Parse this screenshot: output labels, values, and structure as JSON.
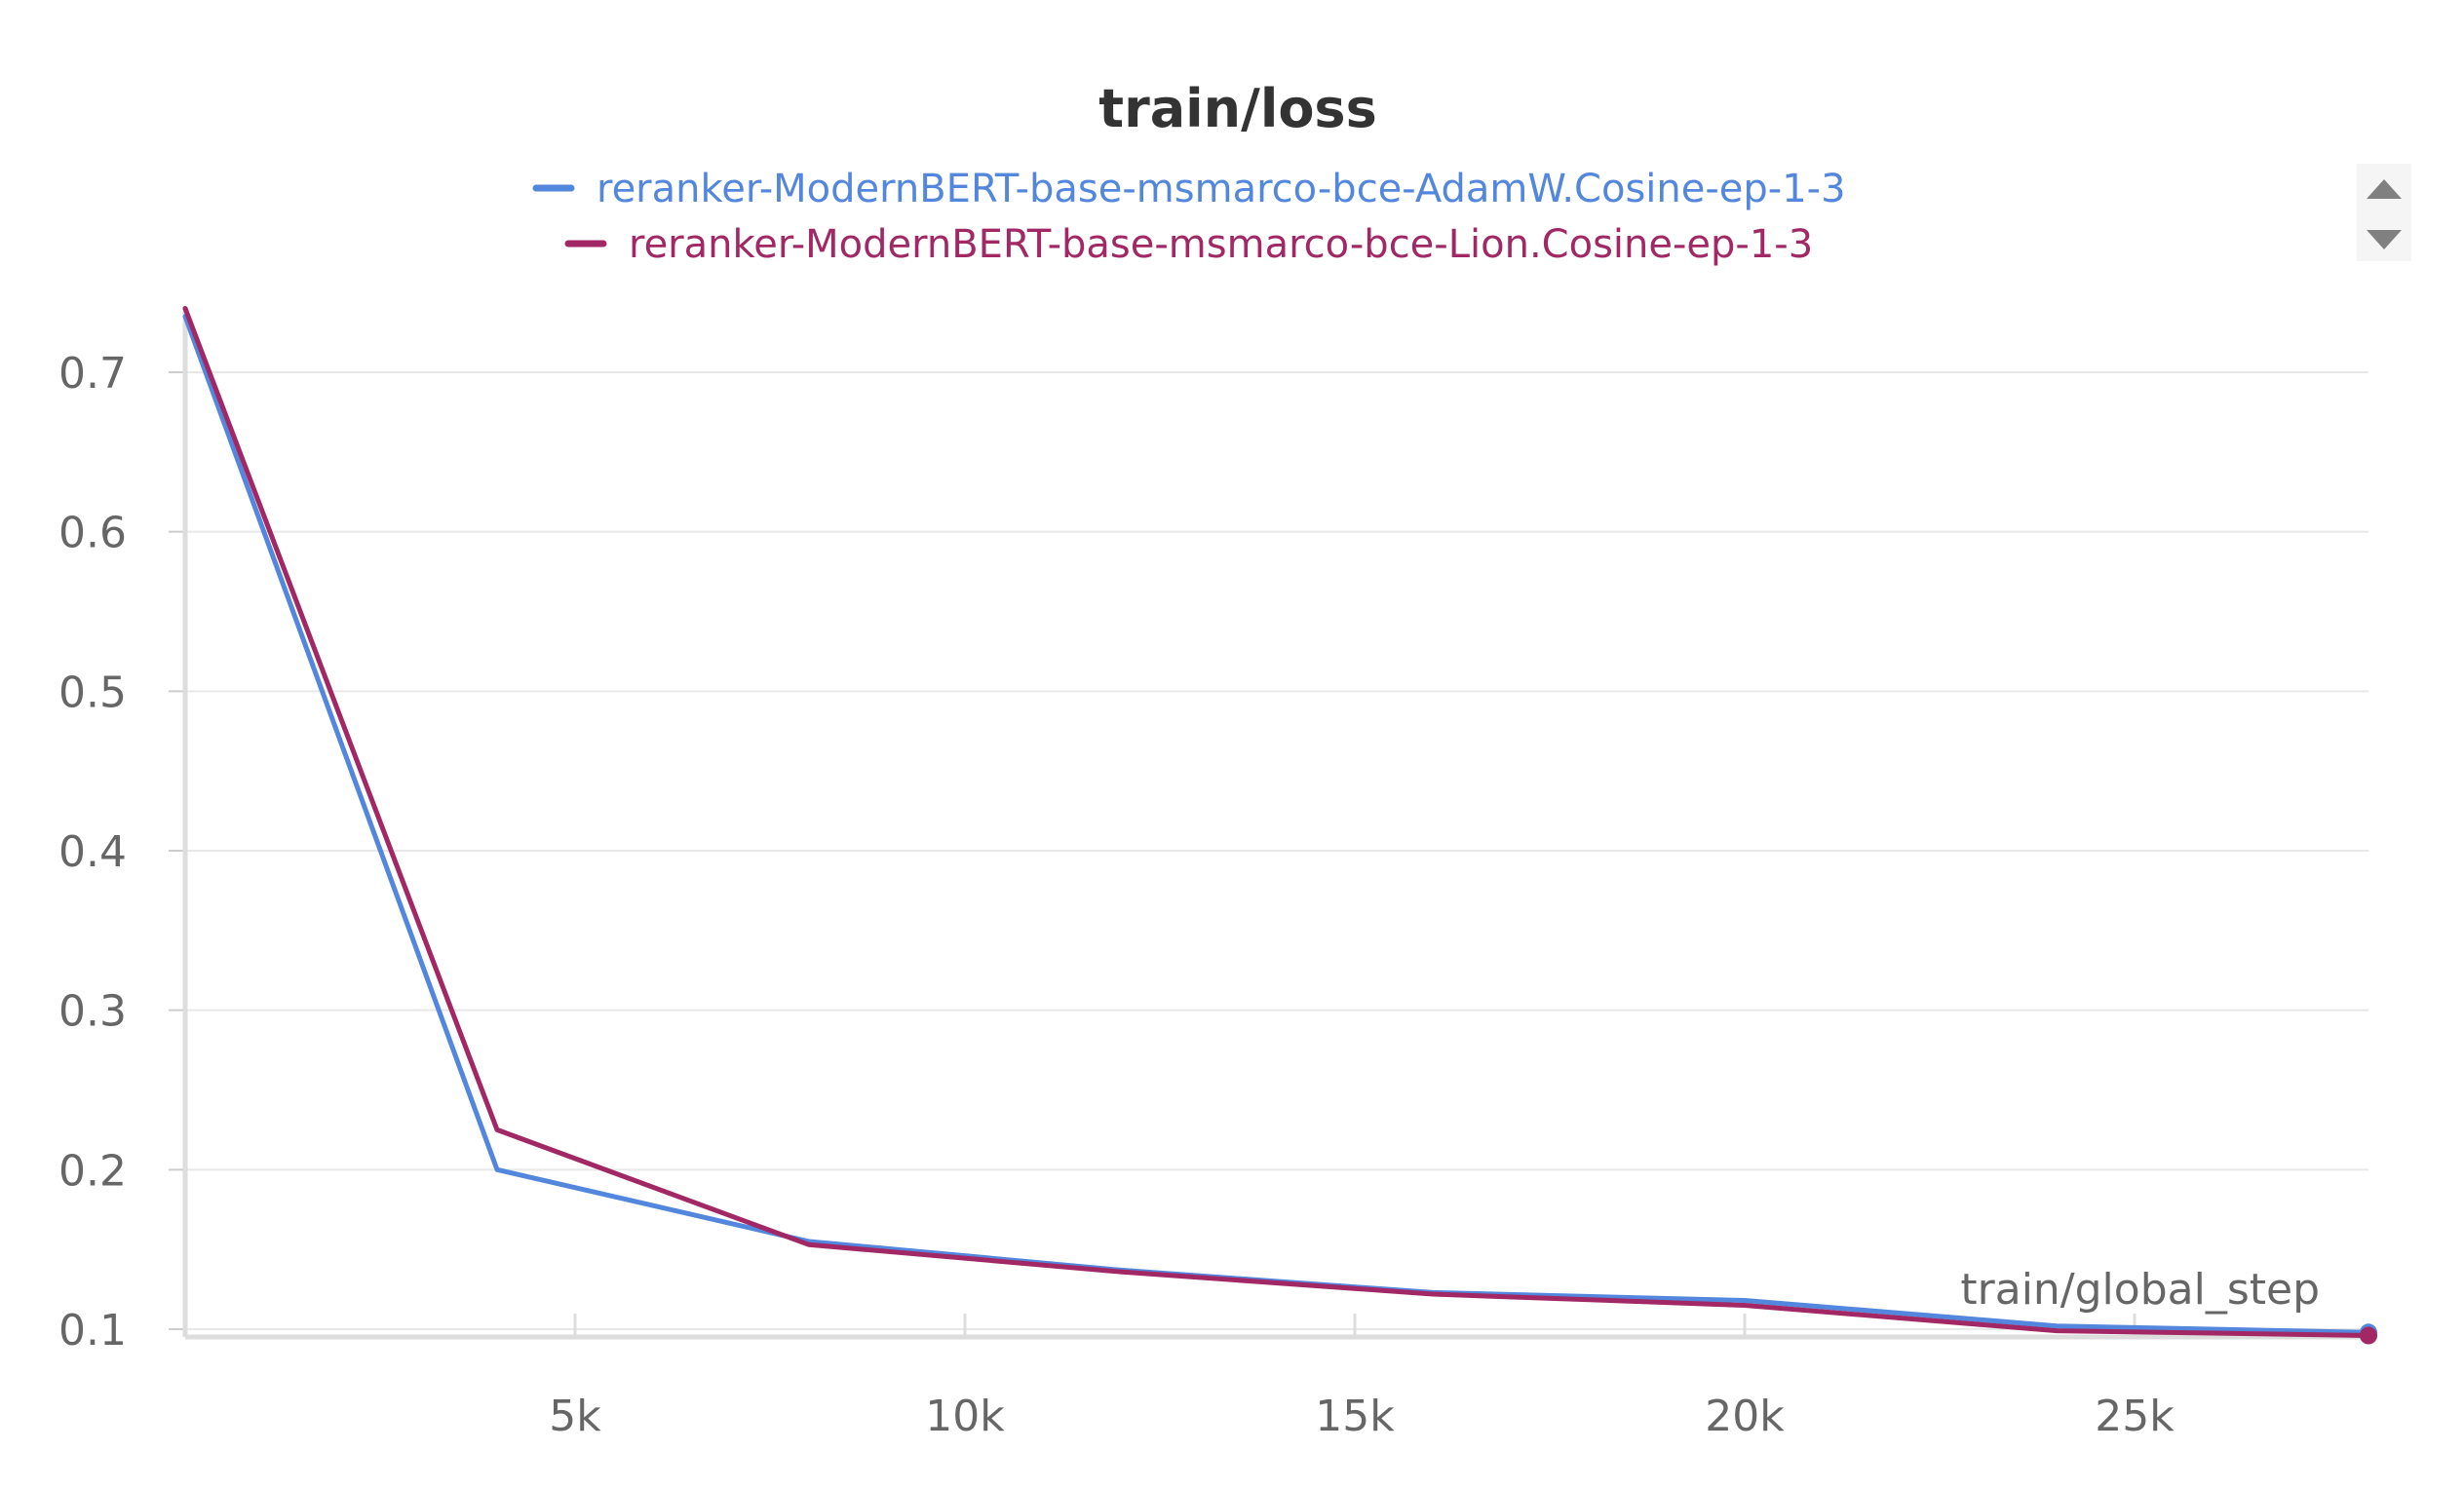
{
  "chart_data": {
    "type": "line",
    "title": "train/loss",
    "xlabel": "train/global_step",
    "ylabel": "",
    "xlim": [
      0,
      28000
    ],
    "ylim": [
      0.1,
      0.74
    ],
    "grid": true,
    "legend_position": "top-center",
    "x_ticks": [
      {
        "value": 5000,
        "label": "5k"
      },
      {
        "value": 10000,
        "label": "10k"
      },
      {
        "value": 15000,
        "label": "15k"
      },
      {
        "value": 20000,
        "label": "20k"
      },
      {
        "value": 25000,
        "label": "25k"
      }
    ],
    "y_ticks": [
      {
        "value": 0.1,
        "label": "0.1"
      },
      {
        "value": 0.2,
        "label": "0.2"
      },
      {
        "value": 0.3,
        "label": "0.3"
      },
      {
        "value": 0.4,
        "label": "0.4"
      },
      {
        "value": 0.5,
        "label": "0.5"
      },
      {
        "value": 0.6,
        "label": "0.6"
      },
      {
        "value": 0.7,
        "label": "0.7"
      }
    ],
    "series": [
      {
        "name": "reranker-ModernBERT-base-msmarco-bce-AdamW.Cosine-ep-1-3",
        "color": "#5387DD",
        "x": [
          0,
          4000,
          8000,
          12000,
          16000,
          20000,
          24000,
          28000
        ],
        "y": [
          0.735,
          0.2,
          0.155,
          0.137,
          0.123,
          0.118,
          0.102,
          0.098
        ]
      },
      {
        "name": "reranker-ModernBERT-base-msmarco-bce-Lion.Cosine-ep-1-3",
        "color": "#A12864",
        "x": [
          0,
          4000,
          8000,
          12000,
          16000,
          20000,
          24000,
          28000
        ],
        "y": [
          0.74,
          0.225,
          0.153,
          0.136,
          0.122,
          0.115,
          0.099,
          0.096
        ]
      }
    ]
  }
}
